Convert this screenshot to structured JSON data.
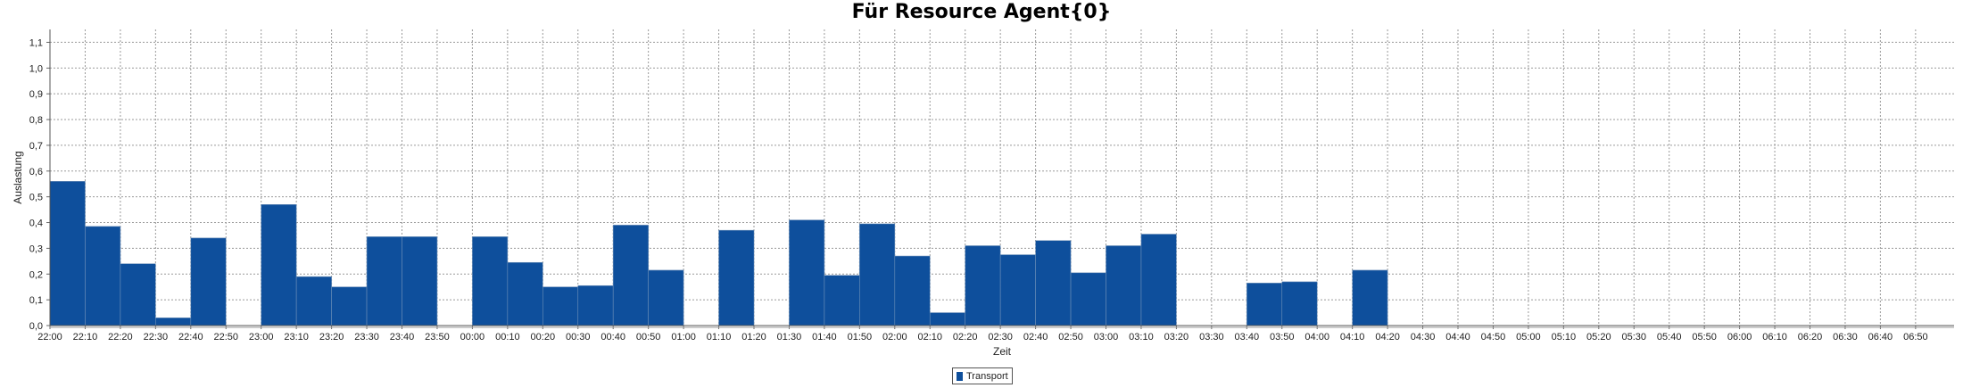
{
  "chart_data": {
    "type": "bar",
    "title": "Für Resource Agent{0}",
    "xlabel": "Zeit",
    "ylabel": "Auslastung",
    "ylim": [
      0,
      1.15
    ],
    "yticks": [
      "0,0",
      "0,1",
      "0,2",
      "0,3",
      "0,4",
      "0,5",
      "0,6",
      "0,7",
      "0,8",
      "0,9",
      "1,0",
      "1,1"
    ],
    "grid": true,
    "legend_position": "bottom",
    "categories": [
      "22:00",
      "22:10",
      "22:20",
      "22:30",
      "22:40",
      "22:50",
      "23:00",
      "23:10",
      "23:20",
      "23:30",
      "23:40",
      "23:50",
      "00:00",
      "00:10",
      "00:20",
      "00:30",
      "00:40",
      "00:50",
      "01:00",
      "01:10",
      "01:20",
      "01:30",
      "01:40",
      "01:50",
      "02:00",
      "02:10",
      "02:20",
      "02:30",
      "02:40",
      "02:50",
      "03:00",
      "03:10",
      "03:20",
      "03:30",
      "03:40",
      "03:50",
      "04:00",
      "04:10",
      "04:20",
      "04:30",
      "04:40",
      "04:50",
      "05:00",
      "05:10",
      "05:20",
      "05:30",
      "05:40",
      "05:50",
      "06:00",
      "06:10",
      "06:20",
      "06:30",
      "06:40",
      "06:50"
    ],
    "series": [
      {
        "name": "Transport",
        "color": "#0e4f9c",
        "values": [
          0.56,
          0.385,
          0.24,
          0.03,
          0.34,
          0,
          0.47,
          0.19,
          0.15,
          0.345,
          0.345,
          0,
          0.345,
          0.245,
          0.15,
          0.155,
          0.39,
          0.215,
          0,
          0.37,
          0,
          0.41,
          0.195,
          0.395,
          0.27,
          0.05,
          0.31,
          0.275,
          0.33,
          0.205,
          0.31,
          0.355,
          0,
          0,
          0.165,
          0.17,
          0,
          0.215,
          0,
          0,
          0,
          0,
          0,
          0,
          0,
          0,
          0,
          0,
          0,
          0,
          0,
          0,
          0,
          0
        ]
      }
    ]
  }
}
